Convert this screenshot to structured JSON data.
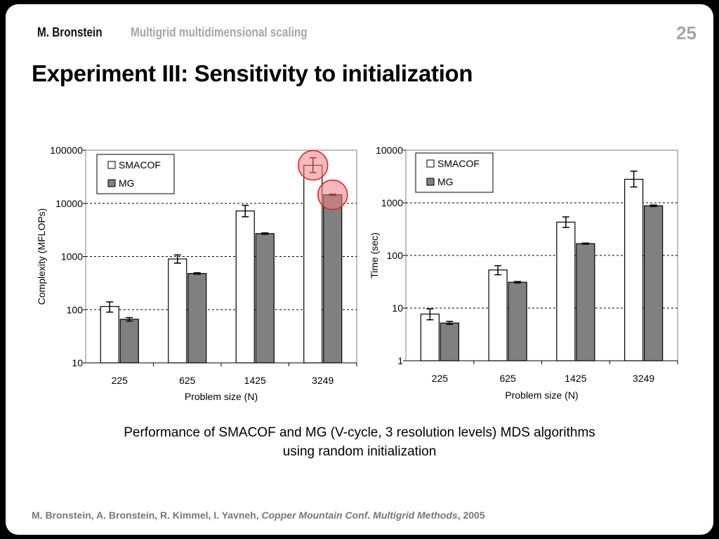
{
  "header": {
    "author": "M. Bronstein",
    "topic": "Multigrid multidimensional scaling",
    "page_number": "25"
  },
  "title": "Experiment III: Sensitivity to initialization",
  "caption": {
    "line1": "Performance of SMACOF and MG (V-cycle, 3 resolution levels) MDS algorithms",
    "line2": "using random initialization"
  },
  "reference": {
    "authors": "M. Bronstein, A. Bronstein, R. Kimmel, I. Yavneh, ",
    "venue": "Copper Mountain Conf. Multigrid Methods",
    "year": ", 2005"
  },
  "colors": {
    "smacof_fill": "#ffffff",
    "mg_fill": "#808080",
    "highlight": "#f08080"
  },
  "chart_data": [
    {
      "type": "bar",
      "yscale": "log",
      "ylim": [
        10,
        100000
      ],
      "yticks": [
        "10",
        "100",
        "1000",
        "10000",
        "100000"
      ],
      "categories": [
        "225",
        "625",
        "1425",
        "3249"
      ],
      "xlabel": "Problem size (N)",
      "ylabel": "Complexity (MFLOPs)",
      "grid": true,
      "legend_position": "top-left",
      "series": [
        {
          "name": "SMACOF",
          "values": [
            115,
            900,
            7200,
            52000
          ],
          "err_low": [
            90,
            750,
            5600,
            38000
          ],
          "err_high": [
            140,
            1070,
            9200,
            72000
          ]
        },
        {
          "name": "MG",
          "values": [
            66,
            480,
            2700,
            14500
          ],
          "err_low": [
            61,
            465,
            2620,
            14100
          ],
          "err_high": [
            71,
            495,
            2780,
            14900
          ]
        }
      ],
      "highlighted": [
        {
          "series": 0,
          "category": 3
        },
        {
          "series": 1,
          "category": 3
        }
      ]
    },
    {
      "type": "bar",
      "yscale": "log",
      "ylim": [
        1,
        10000
      ],
      "yticks": [
        "1",
        "10",
        "100",
        "1000",
        "10000"
      ],
      "categories": [
        "225",
        "625",
        "1425",
        "3249"
      ],
      "xlabel": "Problem size (N)",
      "ylabel": "Time (sec)",
      "grid": true,
      "legend_position": "top-left",
      "series": [
        {
          "name": "SMACOF",
          "values": [
            7.7,
            53,
            430,
            2800
          ],
          "err_low": [
            6.0,
            43,
            340,
            2000
          ],
          "err_high": [
            9.7,
            64,
            540,
            4000
          ]
        },
        {
          "name": "MG",
          "values": [
            5.2,
            31,
            168,
            880
          ],
          "err_low": [
            4.9,
            30,
            164,
            850
          ],
          "err_high": [
            5.6,
            32,
            172,
            910
          ]
        }
      ],
      "highlighted": []
    }
  ]
}
